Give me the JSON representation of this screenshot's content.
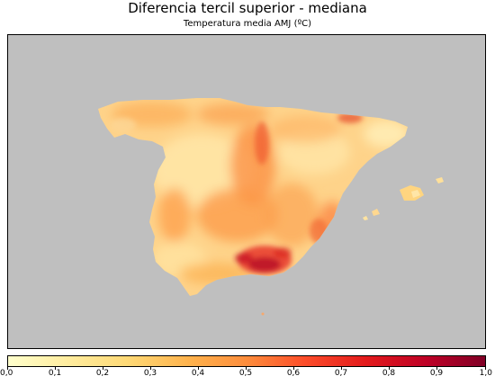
{
  "header": {
    "title": "Diferencia tercil superior - mediana",
    "subtitle": "Temperatura media AMJ (ºC)"
  },
  "map": {
    "background_color": "#bfbfbf",
    "colormap": "YlOrRd",
    "regions": [
      "peninsula",
      "balearic-islands"
    ]
  },
  "colorbar": {
    "min": 0.0,
    "max": 1.0,
    "tick_labels": [
      "0,0",
      "0,1",
      "0,2",
      "0,3",
      "0,4",
      "0,5",
      "0,6",
      "0,7",
      "0,8",
      "0,9",
      "1,0"
    ],
    "colors": [
      "#ffffcc",
      "#ffeda0",
      "#fed976",
      "#feb24c",
      "#fd8d3c",
      "#fc4e2a",
      "#e31a1c",
      "#bd0026",
      "#800026"
    ]
  }
}
